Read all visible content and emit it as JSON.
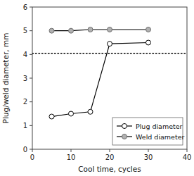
{
  "chart_data": {
    "type": "line",
    "xlabel": "Cool time, cycles",
    "ylabel": "Plug/weld diameter, mm",
    "x": [
      5,
      10,
      15,
      20,
      30
    ],
    "series": [
      {
        "name": "Plug diameter",
        "color": "white",
        "marker": "circle",
        "values": [
          1.38,
          1.5,
          1.58,
          4.45,
          4.5
        ]
      },
      {
        "name": "Weld diameter",
        "color": "#b0b0b0",
        "marker": "circle",
        "values": [
          5.0,
          5.0,
          5.05,
          5.05,
          5.05
        ]
      }
    ],
    "reference_lines": [
      {
        "value": 4.05,
        "line_style": "dotted"
      }
    ],
    "xlim": [
      0,
      40
    ],
    "ylim": [
      0,
      6
    ],
    "xticks": [
      0,
      10,
      20,
      30,
      40
    ],
    "yticks": [
      0,
      1,
      2,
      3,
      4,
      5,
      6
    ],
    "grid": false,
    "legend": "lower right"
  }
}
